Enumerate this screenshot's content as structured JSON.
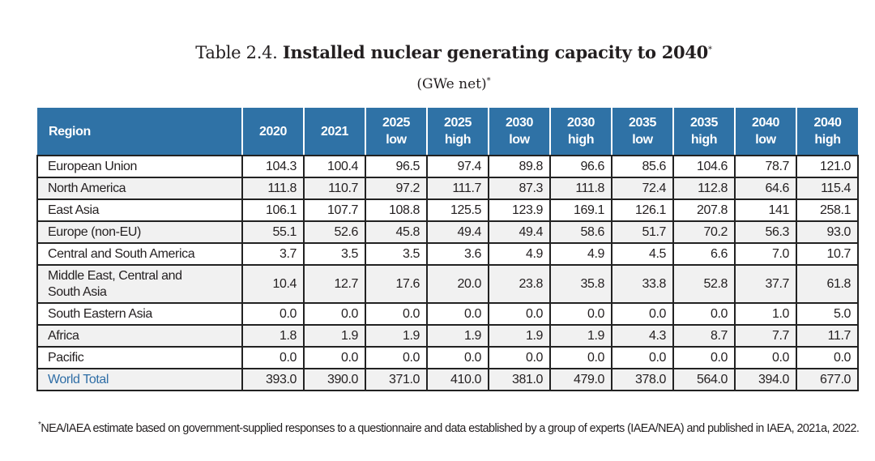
{
  "title": {
    "label": "Table 2.4.",
    "text": "Installed nuclear generating capacity to 2040",
    "marker": "*"
  },
  "subtitle": {
    "text": "(GWe net)",
    "marker": "*"
  },
  "colors": {
    "header_bg": "#2f72a6",
    "alt_row_bg": "#f1f1f1",
    "total_text": "#2f6ea6"
  },
  "table": {
    "headers": [
      [
        "Region"
      ],
      [
        "2020"
      ],
      [
        "2021"
      ],
      [
        "2025",
        "low"
      ],
      [
        "2025",
        "high"
      ],
      [
        "2030",
        "low"
      ],
      [
        "2030",
        "high"
      ],
      [
        "2035",
        "low"
      ],
      [
        "2035",
        "high"
      ],
      [
        "2040",
        "low"
      ],
      [
        "2040",
        "high"
      ]
    ],
    "rows": [
      {
        "region": "European Union",
        "values": [
          "104.3",
          "100.4",
          "96.5",
          "97.4",
          "89.8",
          "96.6",
          "85.6",
          "104.6",
          "78.7",
          "121.0"
        ]
      },
      {
        "region": "North America",
        "values": [
          "111.8",
          "110.7",
          "97.2",
          "111.7",
          "87.3",
          "111.8",
          "72.4",
          "112.8",
          "64.6",
          "115.4"
        ]
      },
      {
        "region": "East Asia",
        "values": [
          "106.1",
          "107.7",
          "108.8",
          "125.5",
          "123.9",
          "169.1",
          "126.1",
          "207.8",
          "141",
          "258.1"
        ]
      },
      {
        "region": "Europe (non-EU)",
        "values": [
          "55.1",
          "52.6",
          "45.8",
          "49.4",
          "49.4",
          "58.6",
          "51.7",
          "70.2",
          "56.3",
          "93.0"
        ]
      },
      {
        "region": "Central and South America",
        "values": [
          "3.7",
          "3.5",
          "3.5",
          "3.6",
          "4.9",
          "4.9",
          "4.5",
          "6.6",
          "7.0",
          "10.7"
        ]
      },
      {
        "region": "Middle East, Central and South Asia",
        "values": [
          "10.4",
          "12.7",
          "17.6",
          "20.0",
          "23.8",
          "35.8",
          "33.8",
          "52.8",
          "37.7",
          "61.8"
        ]
      },
      {
        "region": "South Eastern Asia",
        "values": [
          "0.0",
          "0.0",
          "0.0",
          "0.0",
          "0.0",
          "0.0",
          "0.0",
          "0.0",
          "1.0",
          "5.0"
        ]
      },
      {
        "region": "Africa",
        "values": [
          "1.8",
          "1.9",
          "1.9",
          "1.9",
          "1.9",
          "1.9",
          "4.3",
          "8.7",
          "7.7",
          "11.7"
        ]
      },
      {
        "region": "Pacific",
        "values": [
          "0.0",
          "0.0",
          "0.0",
          "0.0",
          "0.0",
          "0.0",
          "0.0",
          "0.0",
          "0.0",
          "0.0"
        ]
      },
      {
        "region": "World Total",
        "values": [
          "393.0",
          "390.0",
          "371.0",
          "410.0",
          "381.0",
          "479.0",
          "378.0",
          "564.0",
          "394.0",
          "677.0"
        ],
        "total": true
      }
    ]
  },
  "footnote": {
    "marker": "*",
    "text": "NEA/IAEA estimate based on government-supplied responses to a questionnaire and data established by a group of experts (IAEA/NEA) and published in IAEA, 2021a, 2022."
  }
}
